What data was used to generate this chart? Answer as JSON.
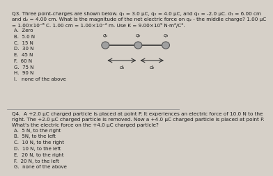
{
  "bg_color": "#d6d0c8",
  "text_color": "#1a1a1a",
  "q3_title": "Q3. Three point-charges are shown below. q₁ = 3.0 μC, q₂ = 4.0 μC, and q₃ = -2.0 μC. d₁ = 6.00 cm",
  "q3_title2": "and d₂ = 4.00 cm. What is the magnitude of the net electric force on q₂ - the middle charge? 1.00 μC",
  "q3_title3": "= 1.00×10⁻⁶ C. 1.00 cm = 1.00×10⁻² m. Use K = 9.00×10⁹ N·m²/C².",
  "q3_options": [
    "A.  Zero",
    "B.  5.0 N",
    "C.  15 N",
    "D.  30 N",
    "E.  45 N",
    "F.  60 N",
    "G.  75 N",
    "H.  90 N",
    "I.   none of the above"
  ],
  "q4_title": "Q4.  A +2.0 μC charged particle is placed at point P. It experiences an electric force of 10.0 N to the",
  "q4_title2": "right. The +2.0 μC charged particle is removed. Now a +4.0 μC charged particle is placed at point P.",
  "q4_title3": "What’s the electric force on the +4.0 μC charged particle?",
  "q4_options": [
    "A.  5 N, to the right",
    "B.  5N, to the left",
    "C.  10 N, to the right",
    "D.  10 N, to the left",
    "E.  20 N, to the right",
    "F.  20 N, to the left",
    "G.  none of the above"
  ],
  "diagram": {
    "q1_label": "q₁",
    "q2_label": "q₂",
    "q3_label": "q₃",
    "d1_label": "d₁",
    "d2_label": "d₂",
    "sphere_color": "#a0a0a0",
    "sphere_edge": "#555555",
    "line_color": "#333333",
    "arrow_color": "#333333"
  }
}
